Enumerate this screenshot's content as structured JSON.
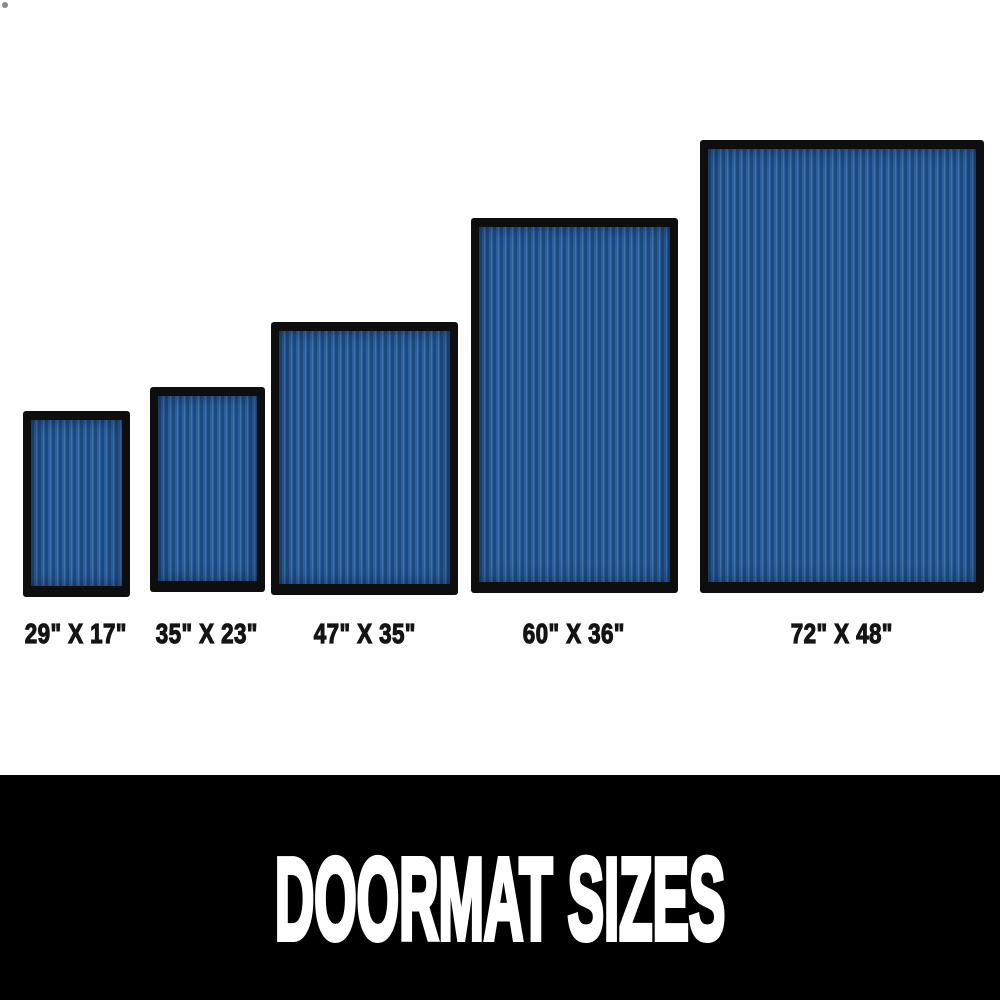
{
  "banner": {
    "title": "DOORMAT SIZES"
  },
  "mats": [
    {
      "size_label": "29\" X 17\"",
      "length_in": 29,
      "width_in": 17
    },
    {
      "size_label": "35\" X 23\"",
      "length_in": 35,
      "width_in": 23
    },
    {
      "size_label": "47\" X 35\"",
      "length_in": 47,
      "width_in": 35
    },
    {
      "size_label": "60\" X 36\"",
      "length_in": 60,
      "width_in": 36
    },
    {
      "size_label": "72\" X 48\"",
      "length_in": 72,
      "width_in": 48
    }
  ],
  "colors": {
    "page_background": "#ffffff",
    "mat_border": "#0e0e0e",
    "mat_stripe_dark": "#1d4b7f",
    "mat_stripe_mid": "#2d5f9c",
    "mat_stripe_light": "#3e72ad",
    "label_text": "#141414",
    "banner_background": "#000000",
    "banner_text": "#ffffff",
    "corner_dot": "#8a8a8a"
  }
}
